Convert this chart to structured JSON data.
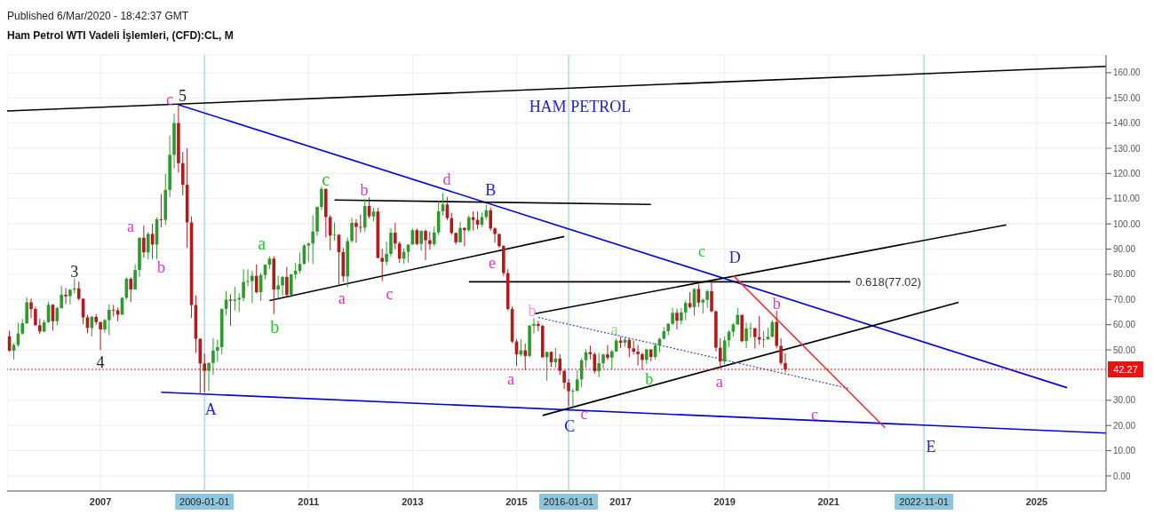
{
  "chart_data": {
    "type": "candlestick",
    "title": "Ham Petrol WTI Vadeli İşlemleri, (CFD):CL, M",
    "x": [
      "2005-04",
      "2005-05",
      "2005-06",
      "2005-07",
      "2005-08",
      "2005-09",
      "2005-10",
      "2005-11",
      "2005-12",
      "2006-01",
      "2006-02",
      "2006-03",
      "2006-04",
      "2006-05",
      "2006-06",
      "2006-07",
      "2006-08",
      "2006-09",
      "2006-10",
      "2006-11",
      "2006-12",
      "2007-01",
      "2007-02",
      "2007-03",
      "2007-04",
      "2007-05",
      "2007-06",
      "2007-07",
      "2007-08",
      "2007-09",
      "2007-10",
      "2007-11",
      "2007-12",
      "2008-01",
      "2008-02",
      "2008-03",
      "2008-04",
      "2008-05",
      "2008-06",
      "2008-07",
      "2008-08",
      "2008-09",
      "2008-10",
      "2008-11",
      "2008-12",
      "2009-01",
      "2009-02",
      "2009-03",
      "2009-04",
      "2009-05",
      "2009-06",
      "2009-07",
      "2009-08",
      "2009-09",
      "2009-10",
      "2009-11",
      "2009-12",
      "2010-01",
      "2010-02",
      "2010-03",
      "2010-04",
      "2010-05",
      "2010-06",
      "2010-07",
      "2010-08",
      "2010-09",
      "2010-10",
      "2010-11",
      "2010-12",
      "2011-01",
      "2011-02",
      "2011-03",
      "2011-04",
      "2011-05",
      "2011-06",
      "2011-07",
      "2011-08",
      "2011-09",
      "2011-10",
      "2011-11",
      "2011-12",
      "2012-01",
      "2012-02",
      "2012-03",
      "2012-04",
      "2012-05",
      "2012-06",
      "2012-07",
      "2012-08",
      "2012-09",
      "2012-10",
      "2012-11",
      "2012-12",
      "2013-01",
      "2013-02",
      "2013-03",
      "2013-04",
      "2013-05",
      "2013-06",
      "2013-07",
      "2013-08",
      "2013-09",
      "2013-10",
      "2013-11",
      "2013-12",
      "2014-01",
      "2014-02",
      "2014-03",
      "2014-04",
      "2014-05",
      "2014-06",
      "2014-07",
      "2014-08",
      "2014-09",
      "2014-10",
      "2014-11",
      "2014-12",
      "2015-01",
      "2015-02",
      "2015-03",
      "2015-04",
      "2015-05",
      "2015-06",
      "2015-07",
      "2015-08",
      "2015-09",
      "2015-10",
      "2015-11",
      "2015-12",
      "2016-01",
      "2016-02",
      "2016-03",
      "2016-04",
      "2016-05",
      "2016-06",
      "2016-07",
      "2016-08",
      "2016-09",
      "2016-10",
      "2016-11",
      "2016-12",
      "2017-01",
      "2017-02",
      "2017-03",
      "2017-04",
      "2017-05",
      "2017-06",
      "2017-07",
      "2017-08",
      "2017-09",
      "2017-10",
      "2017-11",
      "2017-12",
      "2018-01",
      "2018-02",
      "2018-03",
      "2018-04",
      "2018-05",
      "2018-06",
      "2018-07",
      "2018-08",
      "2018-09",
      "2018-10",
      "2018-11",
      "2018-12",
      "2019-01",
      "2019-02",
      "2019-03",
      "2019-04",
      "2019-05",
      "2019-06",
      "2019-07",
      "2019-08",
      "2019-09",
      "2019-10",
      "2019-11",
      "2019-12",
      "2020-01",
      "2020-02",
      "2020-03"
    ],
    "ohlc": [
      [
        55.4,
        57.6,
        49.2,
        49.7
      ],
      [
        49.7,
        52.6,
        46.2,
        51.97
      ],
      [
        51.97,
        60.9,
        51.3,
        56.5
      ],
      [
        56.5,
        62.3,
        56.0,
        60.6
      ],
      [
        60.6,
        70.9,
        60.2,
        68.9
      ],
      [
        68.9,
        70.4,
        62.6,
        66.2
      ],
      [
        66.2,
        67.2,
        59.6,
        59.8
      ],
      [
        59.8,
        62.4,
        56.3,
        57.3
      ],
      [
        57.3,
        61.9,
        56.9,
        61.0
      ],
      [
        61.0,
        69.2,
        60.8,
        67.9
      ],
      [
        67.9,
        68.2,
        57.6,
        61.4
      ],
      [
        61.4,
        67.1,
        59.9,
        66.6
      ],
      [
        66.6,
        75.4,
        66.4,
        71.9
      ],
      [
        71.9,
        74.6,
        68.2,
        71.3
      ],
      [
        71.3,
        74.2,
        68.1,
        73.9
      ],
      [
        73.9,
        78.4,
        72.3,
        74.4
      ],
      [
        74.4,
        77.1,
        69.6,
        70.3
      ],
      [
        70.3,
        70.5,
        60.2,
        62.9
      ],
      [
        62.9,
        63.9,
        56.6,
        58.7
      ],
      [
        58.7,
        63.6,
        55.4,
        63.1
      ],
      [
        63.1,
        64.2,
        60.0,
        61.05
      ],
      [
        61.05,
        61.1,
        49.9,
        58.1
      ],
      [
        58.1,
        62.3,
        56.8,
        61.8
      ],
      [
        61.8,
        68.1,
        55.8,
        65.9
      ],
      [
        65.9,
        67.9,
        63.2,
        65.7
      ],
      [
        65.7,
        66.8,
        61.4,
        64.0
      ],
      [
        64.0,
        70.9,
        63.9,
        70.7
      ],
      [
        70.7,
        78.8,
        69.9,
        78.2
      ],
      [
        78.2,
        78.8,
        69.0,
        74.0
      ],
      [
        74.0,
        83.9,
        73.9,
        81.7
      ],
      [
        81.7,
        94.6,
        79.0,
        94.5
      ],
      [
        94.5,
        99.3,
        86.6,
        88.7
      ],
      [
        88.7,
        96.8,
        85.9,
        96.0
      ],
      [
        96.0,
        100.1,
        86.1,
        91.8
      ],
      [
        91.8,
        102.6,
        86.1,
        101.8
      ],
      [
        101.8,
        111.8,
        98.6,
        101.6
      ],
      [
        101.6,
        119.9,
        99.6,
        113.5
      ],
      [
        113.5,
        135.1,
        110.6,
        127.4
      ],
      [
        127.4,
        143.7,
        122.0,
        140.0
      ],
      [
        140.0,
        147.3,
        120.4,
        124.1
      ],
      [
        124.1,
        128.6,
        111.3,
        115.5
      ],
      [
        115.5,
        130.0,
        90.5,
        100.6
      ],
      [
        100.6,
        103.0,
        62.7,
        67.8
      ],
      [
        67.8,
        71.6,
        48.8,
        54.4
      ],
      [
        54.4,
        54.6,
        32.4,
        44.6
      ],
      [
        44.6,
        48.6,
        33.2,
        41.7
      ],
      [
        41.7,
        45.2,
        33.6,
        44.8
      ],
      [
        44.8,
        54.7,
        40.1,
        49.7
      ],
      [
        49.7,
        54.0,
        45.3,
        51.1
      ],
      [
        51.1,
        66.4,
        48.3,
        66.3
      ],
      [
        66.3,
        73.4,
        63.8,
        69.9
      ],
      [
        69.9,
        72.1,
        59.6,
        69.5
      ],
      [
        69.5,
        75.0,
        65.7,
        70.0
      ],
      [
        70.0,
        72.5,
        65.0,
        70.6
      ],
      [
        70.6,
        82.0,
        69.3,
        77.0
      ],
      [
        77.0,
        82.0,
        75.2,
        77.3
      ],
      [
        77.3,
        81.4,
        68.6,
        79.4
      ],
      [
        79.4,
        83.95,
        72.4,
        72.9
      ],
      [
        72.9,
        80.5,
        69.5,
        79.7
      ],
      [
        79.7,
        83.9,
        78.0,
        83.8
      ],
      [
        83.8,
        87.2,
        82.0,
        86.2
      ],
      [
        86.2,
        87.2,
        64.2,
        73.97
      ],
      [
        73.97,
        79.4,
        70.8,
        75.6
      ],
      [
        75.6,
        79.3,
        71.5,
        78.95
      ],
      [
        78.95,
        82.97,
        71.1,
        71.9
      ],
      [
        71.9,
        80.1,
        70.8,
        79.97
      ],
      [
        79.97,
        84.4,
        78.0,
        81.4
      ],
      [
        81.4,
        88.6,
        80.3,
        84.1
      ],
      [
        84.1,
        92.0,
        84.0,
        91.4
      ],
      [
        91.4,
        92.6,
        85.1,
        92.2
      ],
      [
        92.2,
        103.4,
        84.1,
        96.97
      ],
      [
        96.97,
        106.95,
        95.2,
        106.7
      ],
      [
        106.7,
        114.8,
        105.5,
        113.9
      ],
      [
        113.9,
        114.0,
        94.6,
        102.7
      ],
      [
        102.7,
        103.5,
        89.6,
        95.4
      ],
      [
        95.4,
        100.6,
        93.4,
        95.7
      ],
      [
        95.7,
        96.0,
        75.7,
        88.8
      ],
      [
        88.8,
        90.5,
        77.1,
        79.2
      ],
      [
        79.2,
        94.6,
        74.95,
        93.2
      ],
      [
        93.2,
        102.4,
        92.5,
        100.4
      ],
      [
        100.4,
        101.8,
        92.5,
        98.8
      ],
      [
        98.8,
        103.7,
        96.6,
        98.5
      ],
      [
        98.5,
        109.8,
        96.8,
        107.1
      ],
      [
        107.1,
        110.6,
        102.2,
        103.0
      ],
      [
        103.0,
        106.4,
        101.0,
        104.9
      ],
      [
        104.9,
        106.4,
        86.3,
        86.5
      ],
      [
        86.5,
        90.1,
        77.3,
        84.96
      ],
      [
        84.96,
        92.9,
        83.5,
        88.1
      ],
      [
        88.1,
        98.3,
        87.0,
        96.5
      ],
      [
        96.5,
        100.4,
        90.0,
        92.2
      ],
      [
        92.2,
        93.0,
        84.5,
        86.2
      ],
      [
        86.2,
        90.3,
        84.1,
        88.9
      ],
      [
        88.9,
        91.9,
        84.7,
        91.8
      ],
      [
        91.8,
        98.2,
        91.7,
        97.5
      ],
      [
        97.5,
        98.2,
        91.5,
        92.05
      ],
      [
        92.05,
        97.5,
        89.3,
        97.2
      ],
      [
        97.2,
        97.8,
        85.6,
        93.5
      ],
      [
        93.5,
        96.9,
        89.8,
        91.97
      ],
      [
        91.97,
        99.0,
        91.1,
        96.6
      ],
      [
        96.6,
        109.3,
        95.5,
        105.0
      ],
      [
        105.0,
        112.2,
        103.2,
        107.7
      ],
      [
        107.7,
        110.7,
        101.4,
        102.3
      ],
      [
        102.3,
        104.4,
        95.6,
        96.4
      ],
      [
        96.4,
        96.6,
        91.8,
        92.7
      ],
      [
        92.7,
        100.8,
        92.5,
        98.4
      ],
      [
        98.4,
        98.6,
        91.2,
        97.5
      ],
      [
        97.5,
        103.4,
        96.9,
        102.6
      ],
      [
        102.6,
        104.97,
        97.4,
        101.6
      ],
      [
        101.6,
        104.9,
        97.9,
        99.7
      ],
      [
        99.7,
        104.5,
        98.8,
        102.7
      ],
      [
        102.7,
        107.7,
        101.7,
        105.4
      ],
      [
        105.4,
        106.5,
        97.2,
        98.2
      ],
      [
        98.2,
        98.7,
        92.5,
        96.0
      ],
      [
        96.0,
        96.0,
        90.4,
        91.2
      ],
      [
        91.2,
        91.6,
        79.4,
        80.5
      ],
      [
        80.5,
        82.0,
        65.7,
        66.2
      ],
      [
        66.2,
        67.2,
        52.7,
        53.3
      ],
      [
        53.3,
        54.3,
        43.6,
        48.2
      ],
      [
        48.2,
        54.2,
        47.4,
        49.8
      ],
      [
        49.8,
        52.5,
        42.0,
        47.6
      ],
      [
        47.6,
        59.9,
        47.0,
        59.6
      ],
      [
        59.6,
        62.6,
        56.5,
        60.3
      ],
      [
        60.3,
        61.6,
        57.4,
        59.5
      ],
      [
        59.5,
        60.0,
        46.8,
        47.1
      ],
      [
        47.1,
        49.3,
        37.75,
        49.2
      ],
      [
        49.2,
        49.4,
        43.2,
        45.1
      ],
      [
        45.1,
        50.9,
        43.0,
        46.6
      ],
      [
        46.6,
        48.3,
        40.0,
        41.7
      ],
      [
        41.7,
        42.0,
        34.5,
        37.0
      ],
      [
        37.0,
        38.4,
        27.6,
        33.6
      ],
      [
        33.6,
        34.6,
        26.1,
        33.8
      ],
      [
        33.8,
        41.9,
        33.4,
        38.3
      ],
      [
        38.3,
        46.8,
        35.2,
        45.9
      ],
      [
        45.9,
        50.2,
        43.0,
        49.1
      ],
      [
        49.1,
        51.7,
        46.2,
        48.3
      ],
      [
        48.3,
        49.1,
        40.6,
        41.6
      ],
      [
        41.6,
        48.8,
        39.2,
        44.7
      ],
      [
        44.7,
        48.5,
        42.5,
        48.2
      ],
      [
        48.2,
        51.9,
        46.0,
        46.9
      ],
      [
        46.9,
        50.0,
        42.2,
        49.4
      ],
      [
        49.4,
        54.5,
        49.1,
        53.7
      ],
      [
        53.7,
        55.2,
        50.7,
        52.8
      ],
      [
        52.8,
        54.9,
        51.2,
        54.0
      ],
      [
        54.0,
        54.6,
        47.1,
        50.6
      ],
      [
        50.6,
        53.8,
        48.2,
        49.3
      ],
      [
        49.3,
        52.0,
        43.8,
        48.3
      ],
      [
        48.3,
        48.9,
        42.1,
        46.0
      ],
      [
        46.0,
        50.4,
        44.4,
        50.2
      ],
      [
        50.2,
        50.2,
        45.6,
        47.2
      ],
      [
        47.2,
        52.8,
        46.2,
        51.7
      ],
      [
        51.7,
        54.8,
        49.1,
        54.4
      ],
      [
        54.4,
        59.1,
        54.2,
        57.4
      ],
      [
        57.4,
        60.5,
        55.8,
        60.4
      ],
      [
        60.4,
        66.7,
        59.9,
        64.7
      ],
      [
        64.7,
        66.3,
        58.1,
        61.6
      ],
      [
        61.6,
        66.6,
        60.1,
        64.9
      ],
      [
        64.9,
        69.6,
        61.8,
        68.6
      ],
      [
        68.6,
        72.9,
        66.4,
        67.0
      ],
      [
        67.0,
        74.5,
        63.6,
        74.2
      ],
      [
        74.2,
        76.0,
        67.0,
        68.8
      ],
      [
        68.8,
        70.4,
        64.4,
        69.8
      ],
      [
        69.8,
        73.9,
        66.7,
        73.25
      ],
      [
        73.25,
        76.9,
        64.9,
        65.3
      ],
      [
        65.3,
        65.7,
        49.4,
        50.9
      ],
      [
        50.9,
        54.6,
        42.4,
        45.4
      ],
      [
        45.4,
        55.4,
        44.4,
        53.8
      ],
      [
        53.8,
        57.8,
        51.2,
        57.2
      ],
      [
        57.2,
        60.7,
        55.2,
        60.1
      ],
      [
        60.1,
        66.6,
        60.0,
        63.9
      ],
      [
        63.9,
        63.9,
        53.0,
        53.5
      ],
      [
        53.5,
        60.9,
        50.6,
        58.5
      ],
      [
        58.5,
        60.9,
        54.8,
        58.6
      ],
      [
        58.6,
        58.8,
        50.5,
        55.1
      ],
      [
        55.1,
        63.4,
        52.1,
        54.1
      ],
      [
        54.1,
        57.5,
        50.99,
        54.2
      ],
      [
        54.2,
        58.7,
        54.1,
        55.2
      ],
      [
        55.2,
        61.9,
        55.1,
        61.1
      ],
      [
        61.1,
        65.6,
        50.6,
        51.6
      ],
      [
        51.6,
        54.6,
        44.0,
        44.8
      ],
      [
        44.8,
        48.7,
        41.1,
        42.27
      ]
    ],
    "colors": [
      "#b01c1c",
      "#2e9a2e",
      "#2e9a2e",
      "#2e9a2e",
      "#2e9a2e",
      "#b01c1c",
      "#b01c1c",
      "#b01c1c",
      "#2e9a2e",
      "#2e9a2e",
      "#b01c1c",
      "#2e9a2e",
      "#2e9a2e",
      "#b01c1c",
      "#2e9a2e",
      "#2e9a2e",
      "#b01c1c",
      "#b01c1c",
      "#b01c1c",
      "#2e9a2e",
      "#b01c1c",
      "#b01c1c",
      "#2e9a2e",
      "#2e9a2e",
      "#b01c1c",
      "#b01c1c",
      "#2e9a2e",
      "#2e9a2e",
      "#b01c1c",
      "#2e9a2e",
      "#2e9a2e",
      "#b01c1c",
      "#2e9a2e",
      "#b01c1c",
      "#2e9a2e",
      "#b01c1c",
      "#2e9a2e",
      "#2e9a2e",
      "#2e9a2e",
      "#b01c1c",
      "#b01c1c",
      "#b01c1c",
      "#b01c1c",
      "#b01c1c",
      "#b01c1c",
      "#b01c1c",
      "#2e9a2e",
      "#2e9a2e",
      "#2e9a2e",
      "#2e9a2e",
      "#2e9a2e",
      "#b01c1c",
      "#2e9a2e",
      "#2e9a2e",
      "#2e9a2e",
      "#2e9a2e",
      "#2e9a2e",
      "#b01c1c",
      "#2e9a2e",
      "#2e9a2e",
      "#2e9a2e",
      "#b01c1c",
      "#2e9a2e",
      "#2e9a2e",
      "#b01c1c",
      "#2e9a2e",
      "#2e9a2e",
      "#2e9a2e",
      "#2e9a2e",
      "#2e9a2e",
      "#2e9a2e",
      "#2e9a2e",
      "#2e9a2e",
      "#b01c1c",
      "#b01c1c",
      "#2e9a2e",
      "#b01c1c",
      "#b01c1c",
      "#2e9a2e",
      "#2e9a2e",
      "#b01c1c",
      "#b01c1c",
      "#2e9a2e",
      "#b01c1c",
      "#2e9a2e",
      "#b01c1c",
      "#b01c1c",
      "#2e9a2e",
      "#2e9a2e",
      "#b01c1c",
      "#b01c1c",
      "#2e9a2e",
      "#2e9a2e",
      "#2e9a2e",
      "#b01c1c",
      "#2e9a2e",
      "#b01c1c",
      "#b01c1c",
      "#2e9a2e",
      "#2e9a2e",
      "#2e9a2e",
      "#b01c1c",
      "#b01c1c",
      "#b01c1c",
      "#2e9a2e",
      "#b01c1c",
      "#2e9a2e",
      "#b01c1c",
      "#b01c1c",
      "#2e9a2e",
      "#2e9a2e",
      "#b01c1c",
      "#b01c1c",
      "#b01c1c",
      "#b01c1c",
      "#b01c1c",
      "#b01c1c",
      "#b01c1c",
      "#2e9a2e",
      "#b01c1c",
      "#2e9a2e",
      "#2e9a2e",
      "#b01c1c",
      "#b01c1c",
      "#2e9a2e",
      "#b01c1c",
      "#2e9a2e",
      "#b01c1c",
      "#b01c1c",
      "#b01c1c",
      "#2e9a2e",
      "#2e9a2e",
      "#2e9a2e",
      "#2e9a2e",
      "#b01c1c",
      "#b01c1c",
      "#2e9a2e",
      "#2e9a2e",
      "#b01c1c",
      "#2e9a2e",
      "#2e9a2e",
      "#b01c1c",
      "#2e9a2e",
      "#b01c1c",
      "#b01c1c",
      "#b01c1c",
      "#b01c1c",
      "#2e9a2e",
      "#b01c1c",
      "#2e9a2e",
      "#2e9a2e",
      "#2e9a2e",
      "#2e9a2e",
      "#2e9a2e",
      "#b01c1c",
      "#2e9a2e",
      "#2e9a2e",
      "#b01c1c",
      "#2e9a2e",
      "#b01c1c",
      "#2e9a2e",
      "#2e9a2e",
      "#b01c1c",
      "#b01c1c",
      "#b01c1c",
      "#2e9a2e",
      "#2e9a2e",
      "#2e9a2e",
      "#2e9a2e",
      "#b01c1c",
      "#2e9a2e",
      "#2e9a2e",
      "#b01c1c",
      "#b01c1c",
      "#2e9a2e",
      "#2e9a2e",
      "#2e9a2e",
      "#b01c1c",
      "#b01c1c",
      "#b01c1c"
    ],
    "series": [
      {
        "type": "line",
        "color": "#000000",
        "x": [
          "2005-03-15",
          "2026-05"
        ],
        "values": [
          144.8,
          162.5
        ]
      },
      {
        "type": "line",
        "color": "#0000dd",
        "x": [
          "2008-07",
          "2025-08"
        ],
        "values": [
          147.3,
          35.0
        ]
      },
      {
        "type": "line",
        "color": "#0000dd",
        "x": [
          "2008-03",
          "2026-05"
        ],
        "values": [
          33.2,
          17.0
        ]
      },
      {
        "type": "line",
        "color": "#000000",
        "x": [
          "2010-04",
          "2015-12"
        ],
        "values": [
          69.6,
          95.0
        ]
      },
      {
        "type": "line",
        "color": "#000000",
        "x": [
          "2011-07",
          "2017-08"
        ],
        "values": [
          109.5,
          107.7
        ]
      },
      {
        "type": "line",
        "name": "0.618(77.02)",
        "color": "#000000",
        "x": [
          "2014-02",
          "2021-06"
        ],
        "values": [
          77.02,
          77.02
        ]
      },
      {
        "type": "line",
        "color": "#000000",
        "x": [
          "2015-05",
          "2024-06"
        ],
        "values": [
          64.3,
          99.6
        ]
      },
      {
        "type": "line",
        "color": "#000000",
        "x": [
          "2015-07",
          "2023-07"
        ],
        "values": [
          24.0,
          68.9
        ]
      },
      {
        "type": "line",
        "color": "#3f3fd0",
        "line_style": "dotted",
        "x": [
          "2015-06",
          "2021-06"
        ],
        "values": [
          62.9,
          34.6
        ]
      },
      {
        "type": "line",
        "color": "#ee3333",
        "x": [
          "2019-03",
          "2022-02"
        ],
        "values": [
          79.5,
          19.1
        ]
      }
    ],
    "xlim": [
      "2005-03-15",
      "2026-05"
    ],
    "xticks": [
      {
        "value": "2007",
        "label": "2007"
      },
      {
        "value": "2011",
        "label": "2011"
      },
      {
        "value": "2013",
        "label": "2013"
      },
      {
        "value": "2015",
        "label": "2015"
      },
      {
        "value": "2017",
        "label": "2017"
      },
      {
        "value": "2019",
        "label": "2019"
      },
      {
        "value": "2021",
        "label": "2021"
      },
      {
        "value": "2025",
        "label": "2025"
      }
    ],
    "ylim": [
      -6,
      167
    ],
    "yticks": [
      {
        "value": 0,
        "label": "0.00"
      },
      {
        "value": 10,
        "label": "10.00"
      },
      {
        "value": 20,
        "label": "20.00"
      },
      {
        "value": 30,
        "label": "30.00"
      },
      {
        "value": 50,
        "label": "50.00"
      },
      {
        "value": 60,
        "label": "60.00"
      },
      {
        "value": 70,
        "label": "70.00"
      },
      {
        "value": 80,
        "label": "80.00"
      },
      {
        "value": 90,
        "label": "90.00"
      },
      {
        "value": 100,
        "label": "100.00"
      },
      {
        "value": 110,
        "label": "110.00"
      },
      {
        "value": 120,
        "label": "120.00"
      },
      {
        "value": 130,
        "label": "130.00"
      },
      {
        "value": 140,
        "label": "140.00"
      },
      {
        "value": 150,
        "label": "150.00"
      },
      {
        "value": 160,
        "label": "160.00"
      }
    ],
    "ref_lines": [
      {
        "axis": "x",
        "value": "2009-01-01",
        "label": "2009-01-01",
        "color": "#8ec5dc"
      },
      {
        "axis": "x",
        "value": "2016-01-01",
        "label": "2016-01-01",
        "color": "#8ec5dc"
      },
      {
        "axis": "x",
        "value": "2022-11-01",
        "label": "2022-11-01",
        "color": "#8ec5dc"
      },
      {
        "axis": "y",
        "value": 42.27,
        "label": "42.27",
        "color": "#ee1111",
        "line_style": "dotted"
      }
    ],
    "grid": true,
    "annotations": [
      "Published 6/Mar/2020 - 18:42:37 GMT",
      "HAM PETROL",
      "5",
      "c",
      "3",
      "4",
      "a",
      "b",
      "A",
      "a",
      "b",
      "c",
      "b",
      "a",
      "c",
      "d",
      "B",
      "e",
      "a",
      "b",
      "C",
      "c",
      "a",
      "b",
      "c",
      "D",
      "a",
      "b",
      "c",
      "E"
    ]
  }
}
